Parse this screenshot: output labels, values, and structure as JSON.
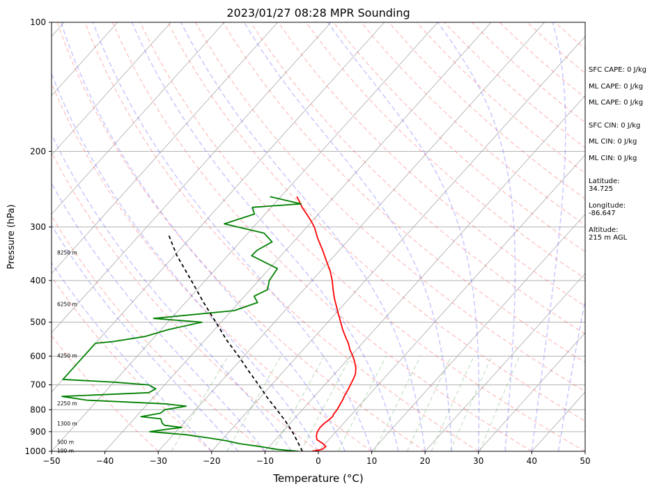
{
  "chart_data": {
    "type": "skew-t sounding",
    "title": "2023/01/27 08:28 MPR Sounding",
    "xlabel": "Temperature (°C)",
    "ylabel": "Pressure (hPa)",
    "xlim": [
      -50,
      50
    ],
    "ylim": [
      1000,
      100
    ],
    "y_scale": "log",
    "grid": true,
    "x_ticks": [
      "−50",
      "−40",
      "−30",
      "−20",
      "−10",
      "0",
      "10",
      "20",
      "30",
      "40",
      "50"
    ],
    "y_ticks": [
      "100",
      "200",
      "300",
      "400",
      "500",
      "600",
      "700",
      "800",
      "900",
      "1000"
    ],
    "height_labels": [
      {
        "text": "100 m",
        "p": 1000
      },
      {
        "text": "500 m",
        "p": 955
      },
      {
        "text": "1300 m",
        "p": 865
      },
      {
        "text": "2250 m",
        "p": 775
      },
      {
        "text": "4250 m",
        "p": 600
      },
      {
        "text": "6250 m",
        "p": 455
      },
      {
        "text": "8250 m",
        "p": 345
      }
    ],
    "series": [
      {
        "color": "#ff0000",
        "points": [
          [
            1000,
            -1.2
          ],
          [
            990,
            0.4
          ],
          [
            975,
            0.6
          ],
          [
            960,
            -0.4
          ],
          [
            940,
            -2.2
          ],
          [
            920,
            -3.0
          ],
          [
            900,
            -3.5
          ],
          [
            880,
            -3.7
          ],
          [
            860,
            -3.6
          ],
          [
            850,
            -3.4
          ],
          [
            830,
            -3.2
          ],
          [
            820,
            -3.4
          ],
          [
            800,
            -3.5
          ],
          [
            780,
            -3.8
          ],
          [
            760,
            -4.1
          ],
          [
            740,
            -4.5
          ],
          [
            720,
            -4.8
          ],
          [
            700,
            -5.2
          ],
          [
            680,
            -5.6
          ],
          [
            660,
            -6.1
          ],
          [
            640,
            -7.0
          ],
          [
            620,
            -8.2
          ],
          [
            600,
            -9.6
          ],
          [
            580,
            -11.2
          ],
          [
            560,
            -12.6
          ],
          [
            540,
            -14.3
          ],
          [
            520,
            -16.0
          ],
          [
            500,
            -17.6
          ],
          [
            480,
            -19.3
          ],
          [
            460,
            -21.0
          ],
          [
            440,
            -22.8
          ],
          [
            420,
            -24.5
          ],
          [
            400,
            -26.2
          ],
          [
            380,
            -28.2
          ],
          [
            360,
            -30.6
          ],
          [
            340,
            -33.1
          ],
          [
            320,
            -35.9
          ],
          [
            300,
            -38.6
          ],
          [
            290,
            -40.3
          ],
          [
            280,
            -42.2
          ],
          [
            270,
            -44.2
          ],
          [
            260,
            -46.0
          ],
          [
            255,
            -47.0
          ]
        ]
      },
      {
        "color": "#008000",
        "points": [
          [
            1000,
            -3.7
          ],
          [
            990,
            -8.0
          ],
          [
            975,
            -11.7
          ],
          [
            960,
            -16.0
          ],
          [
            945,
            -19.0
          ],
          [
            930,
            -23.0
          ],
          [
            915,
            -27.6
          ],
          [
            900,
            -34.9
          ],
          [
            890,
            -32.5
          ],
          [
            880,
            -29.6
          ],
          [
            870,
            -33.2
          ],
          [
            860,
            -34.0
          ],
          [
            840,
            -35.0
          ],
          [
            830,
            -39.1
          ],
          [
            815,
            -36.0
          ],
          [
            800,
            -35.8
          ],
          [
            785,
            -32.4
          ],
          [
            775,
            -36.8
          ],
          [
            760,
            -52.0
          ],
          [
            745,
            -57.3
          ],
          [
            730,
            -41.7
          ],
          [
            715,
            -41.0
          ],
          [
            700,
            -43.0
          ],
          [
            690,
            -50.0
          ],
          [
            680,
            -60.0
          ],
          [
            600,
            -60.0
          ],
          [
            560,
            -60.0
          ],
          [
            555,
            -57.0
          ],
          [
            540,
            -51.9
          ],
          [
            520,
            -48.6
          ],
          [
            500,
            -43.6
          ],
          [
            490,
            -53.3
          ],
          [
            470,
            -39.5
          ],
          [
            450,
            -36.5
          ],
          [
            435,
            -38.2
          ],
          [
            420,
            -36.8
          ],
          [
            400,
            -38.0
          ],
          [
            375,
            -38.5
          ],
          [
            350,
            -45.5
          ],
          [
            340,
            -45.4
          ],
          [
            325,
            -44.0
          ],
          [
            310,
            -47.0
          ],
          [
            295,
            -56.0
          ],
          [
            280,
            -52.0
          ],
          [
            270,
            -53.5
          ],
          [
            265,
            -45.0
          ],
          [
            255,
            -52.0
          ]
        ]
      },
      {
        "color": "#000000",
        "dash": true,
        "points": [
          [
            1000,
            -3.0
          ],
          [
            950,
            -5.5
          ],
          [
            900,
            -8.2
          ],
          [
            850,
            -11.3
          ],
          [
            800,
            -14.8
          ],
          [
            750,
            -18.6
          ],
          [
            700,
            -22.4
          ],
          [
            650,
            -26.6
          ],
          [
            600,
            -31.0
          ],
          [
            550,
            -36.0
          ],
          [
            500,
            -41.0
          ],
          [
            450,
            -46.6
          ],
          [
            400,
            -52.6
          ],
          [
            350,
            -59.5
          ],
          [
            310,
            -65.0
          ]
        ]
      }
    ],
    "background_lines": {
      "isotherm_step_c": 10,
      "dry_adiabat_color": "#ff0000",
      "moist_adiabat_color": "#0000ff",
      "mixing_ratio_color": "#008000"
    }
  },
  "info": {
    "sfc_cape": "SFC CAPE: 0 J/kg",
    "ml_cape1": "ML CAPE: 0 J/kg",
    "ml_cape2": "ML CAPE: 0 J/kg",
    "sfc_cin": "SFC CIN: 0 J/kg",
    "ml_cin1": "ML CIN: 0 J/kg",
    "ml_cin2": "ML CIN: 0 J/kg",
    "latitude": "Latitude:\n34.725",
    "longitude": "Longitude:\n-86.647",
    "altitude": "Altitude:\n215 m AGL"
  }
}
